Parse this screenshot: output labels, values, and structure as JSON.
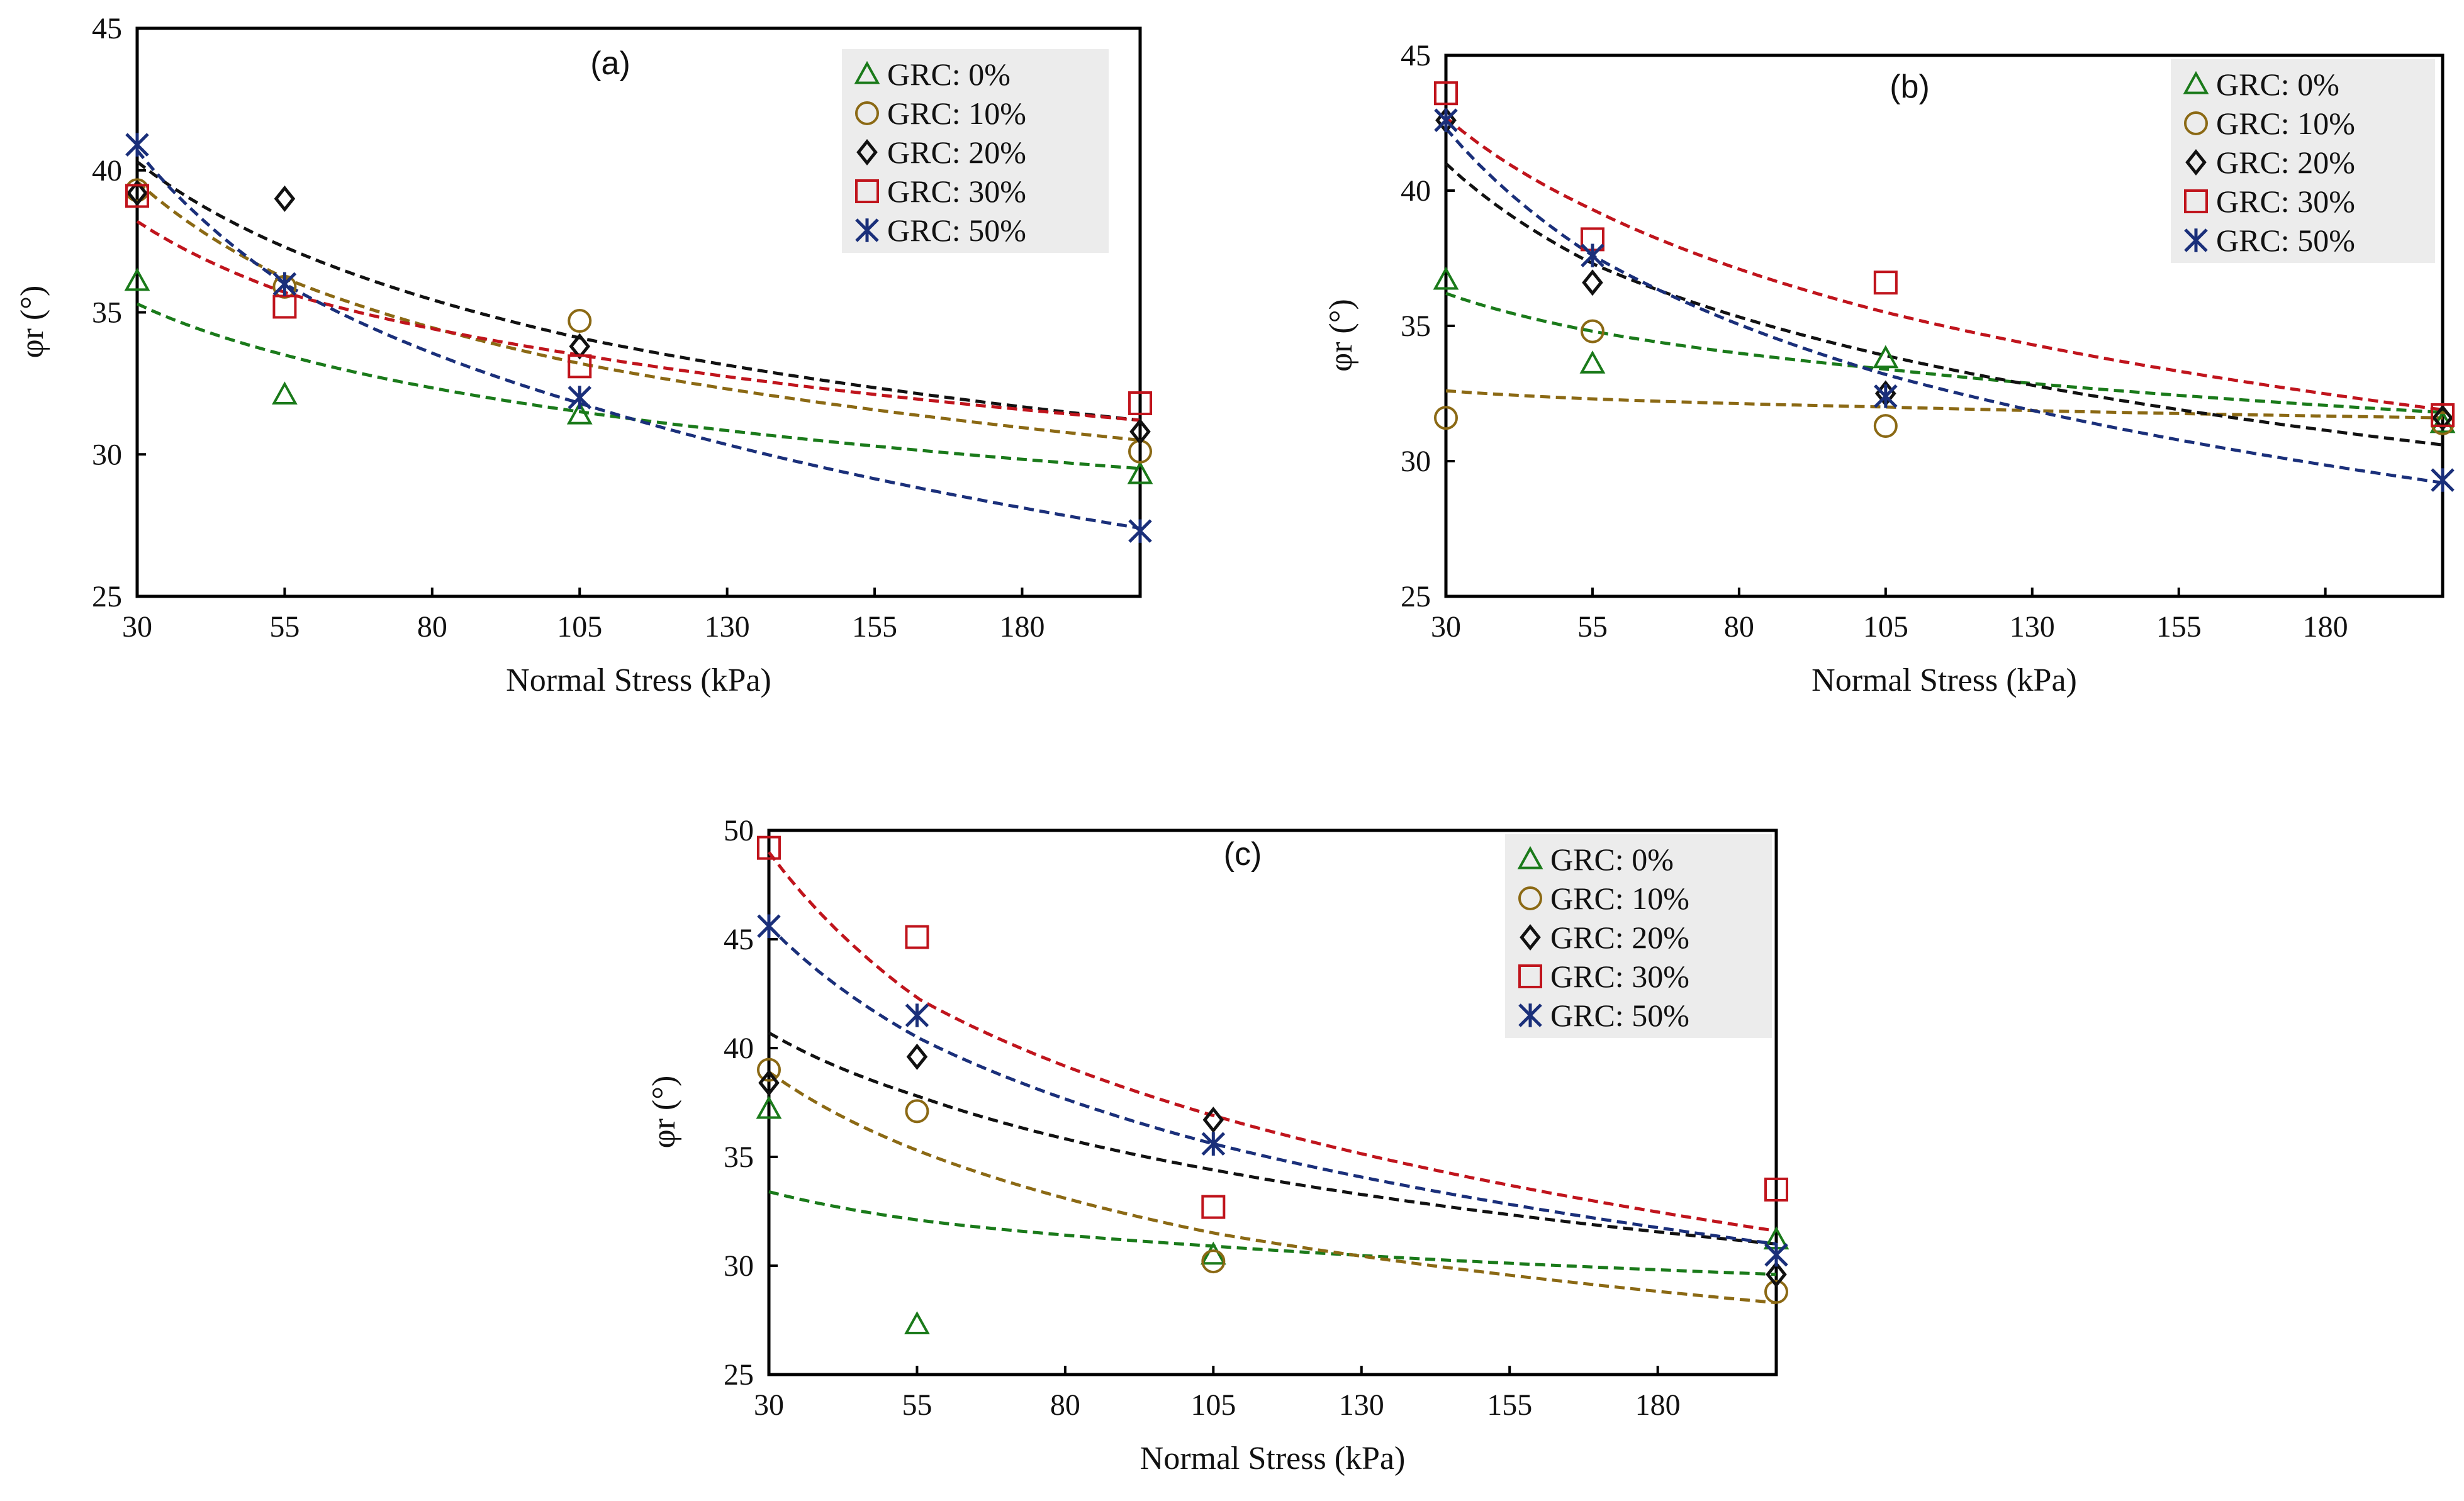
{
  "colors": {
    "GRC: 0%": "#1a7a1a",
    "GRC: 10%": "#8b6914",
    "GRC: 20%": "#111111",
    "GRC: 30%": "#c0141c",
    "GRC: 50%": "#1a2f7a",
    "legend_bg": "#ececec"
  },
  "chart_data": [
    {
      "type": "scatter",
      "panel_label": "(a)",
      "xlabel": "Normal Stress (kPa)",
      "ylabel": "φr (°)",
      "xlim": [
        30,
        200
      ],
      "ylim": [
        25,
        45
      ],
      "xticks": [
        30,
        55,
        80,
        105,
        130,
        155,
        180
      ],
      "yticks": [
        25,
        30,
        35,
        40,
        45
      ],
      "legend_position": "top-right",
      "series": [
        {
          "name": "GRC: 0%",
          "marker": "triangle-icon",
          "x": [
            30,
            55,
            105,
            200
          ],
          "y": [
            36.1,
            32.1,
            31.4,
            29.3
          ],
          "fit": [
            35.3,
            33.5,
            31.5,
            29.5
          ]
        },
        {
          "name": "GRC: 10%",
          "marker": "circle-icon",
          "x": [
            30,
            55,
            105,
            200
          ],
          "y": [
            39.3,
            35.9,
            34.7,
            30.1
          ],
          "fit": [
            39.6,
            36.2,
            33.2,
            30.5
          ]
        },
        {
          "name": "GRC: 20%",
          "marker": "diamond-icon",
          "x": [
            30,
            55,
            105,
            200
          ],
          "y": [
            39.2,
            39.0,
            33.8,
            30.8
          ],
          "fit": [
            40.3,
            37.3,
            34.1,
            31.2
          ]
        },
        {
          "name": "GRC: 30%",
          "marker": "square-icon",
          "x": [
            30,
            55,
            105,
            200
          ],
          "y": [
            39.1,
            35.2,
            33.1,
            31.8
          ],
          "fit": [
            38.2,
            35.7,
            33.5,
            31.2
          ]
        },
        {
          "name": "GRC: 50%",
          "marker": "x-icon",
          "x": [
            30,
            55,
            105,
            200
          ],
          "y": [
            40.9,
            36.0,
            32.0,
            27.3
          ],
          "fit": [
            40.7,
            36.0,
            31.8,
            27.4
          ]
        }
      ]
    },
    {
      "type": "scatter",
      "panel_label": "(b)",
      "xlabel": "Normal Stress (kPa)",
      "ylabel": "φr (°)",
      "xlim": [
        30,
        200
      ],
      "ylim": [
        25,
        45
      ],
      "xticks": [
        30,
        55,
        80,
        105,
        130,
        155,
        180
      ],
      "yticks": [
        25,
        30,
        35,
        40,
        45
      ],
      "legend_position": "top-right",
      "series": [
        {
          "name": "GRC: 0%",
          "marker": "triangle-icon",
          "x": [
            30,
            55,
            105,
            200
          ],
          "y": [
            36.7,
            33.6,
            33.8,
            31.4
          ],
          "fit": [
            36.2,
            34.8,
            33.4,
            31.8
          ]
        },
        {
          "name": "GRC: 10%",
          "marker": "circle-icon",
          "x": [
            30,
            55,
            105,
            200
          ],
          "y": [
            31.6,
            34.8,
            31.3,
            31.4
          ],
          "fit": [
            32.6,
            32.3,
            32.0,
            31.6
          ]
        },
        {
          "name": "GRC: 20%",
          "marker": "diamond-icon",
          "x": [
            30,
            55,
            105,
            200
          ],
          "y": [
            42.6,
            36.6,
            32.5,
            31.6
          ],
          "fit": [
            41.0,
            37.3,
            33.9,
            30.6
          ]
        },
        {
          "name": "GRC: 30%",
          "marker": "square-icon",
          "x": [
            30,
            55,
            105,
            200
          ],
          "y": [
            43.6,
            38.2,
            36.6,
            31.7
          ],
          "fit": [
            42.7,
            39.3,
            35.5,
            31.9
          ]
        },
        {
          "name": "GRC: 50%",
          "marker": "x-icon",
          "x": [
            30,
            55,
            105,
            200
          ],
          "y": [
            42.6,
            37.6,
            32.4,
            29.3
          ],
          "fit": [
            42.3,
            37.6,
            33.2,
            29.2
          ]
        }
      ]
    },
    {
      "type": "scatter",
      "panel_label": "(c)",
      "xlabel": "Normal Stress (kPa)",
      "ylabel": "φr (°)",
      "xlim": [
        30,
        200
      ],
      "ylim": [
        25,
        50
      ],
      "xticks": [
        30,
        55,
        80,
        105,
        130,
        155,
        180
      ],
      "yticks": [
        25,
        30,
        35,
        40,
        45,
        50
      ],
      "legend_position": "top-right",
      "series": [
        {
          "name": "GRC: 0%",
          "marker": "triangle-icon",
          "x": [
            30,
            55,
            105,
            200
          ],
          "y": [
            37.2,
            27.3,
            30.5,
            31.2
          ],
          "fit": [
            33.4,
            32.1,
            30.9,
            29.6
          ]
        },
        {
          "name": "GRC: 10%",
          "marker": "circle-icon",
          "x": [
            30,
            55,
            105,
            200
          ],
          "y": [
            39.0,
            37.1,
            30.2,
            28.8
          ],
          "fit": [
            38.9,
            35.3,
            31.5,
            28.3
          ]
        },
        {
          "name": "GRC: 20%",
          "marker": "diamond-icon",
          "x": [
            30,
            55,
            105,
            200
          ],
          "y": [
            38.4,
            39.6,
            36.7,
            29.6
          ],
          "fit": [
            40.7,
            37.8,
            34.4,
            31.0
          ]
        },
        {
          "name": "GRC: 30%",
          "marker": "square-icon",
          "x": [
            30,
            55,
            105,
            200
          ],
          "y": [
            49.2,
            45.1,
            32.7,
            33.5
          ],
          "fit": [
            49.0,
            42.3,
            36.9,
            31.6
          ]
        },
        {
          "name": "GRC: 50%",
          "marker": "x-icon",
          "x": [
            30,
            55,
            105,
            200
          ],
          "y": [
            45.6,
            41.5,
            35.6,
            30.5
          ],
          "fit": [
            45.6,
            40.5,
            35.6,
            31.0
          ]
        }
      ]
    }
  ]
}
